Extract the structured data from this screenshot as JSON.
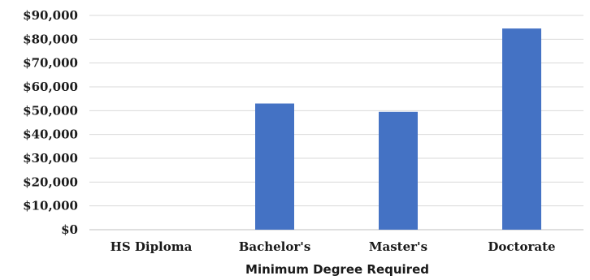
{
  "chart_data": {
    "type": "bar",
    "categories": [
      "HS Diploma",
      "Bachelor's",
      "Master's",
      "Doctorate"
    ],
    "values": [
      0,
      53000,
      49500,
      84500
    ],
    "xlabel": "Minimum Degree Required",
    "ylabel": "",
    "ylim": [
      0,
      90000
    ],
    "yticks": [
      0,
      10000,
      20000,
      30000,
      40000,
      50000,
      60000,
      70000,
      80000,
      90000
    ],
    "ytick_labels": [
      "$0",
      "$10,000",
      "$20,000",
      "$30,000",
      "$40,000",
      "$50,000",
      "$60,000",
      "$70,000",
      "$80,000",
      "$90,000"
    ],
    "bar_color": "#4472c4",
    "grid": true,
    "legend": "none"
  }
}
